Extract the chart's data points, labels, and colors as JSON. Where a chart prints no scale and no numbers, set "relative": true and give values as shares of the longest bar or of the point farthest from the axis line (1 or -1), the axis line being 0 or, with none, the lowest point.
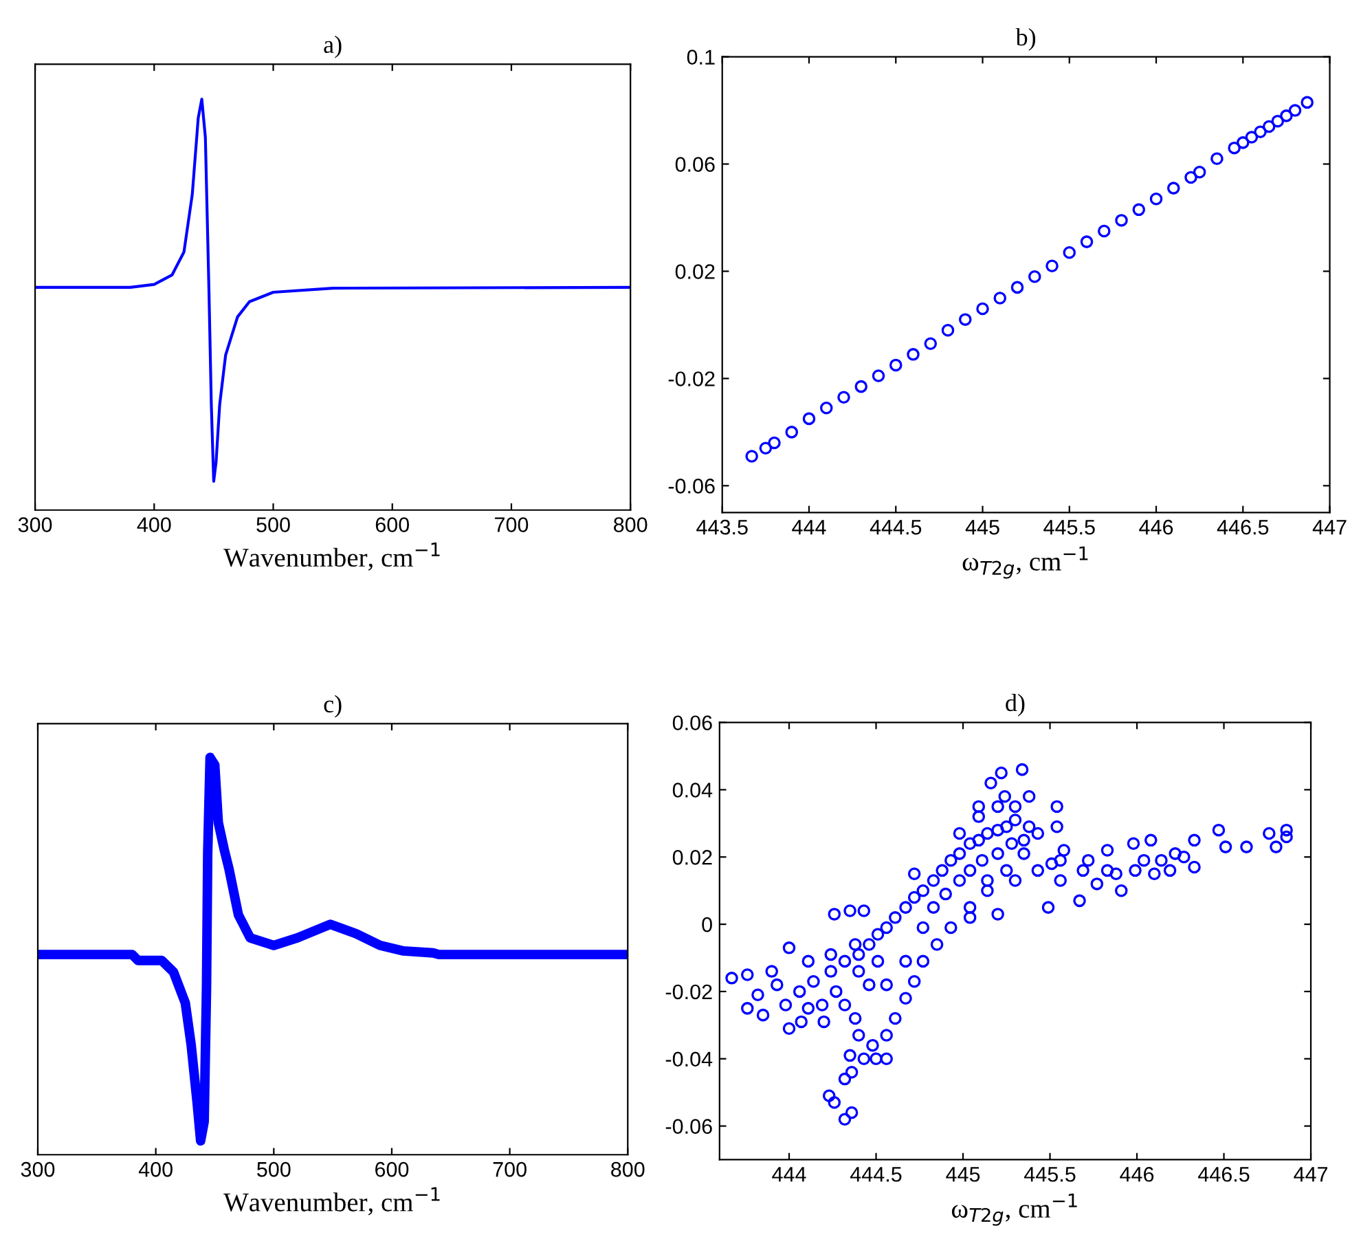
{
  "chart_data": [
    {
      "type": "line",
      "title": "a)",
      "xlabel": "Wavenumber, cm$^{−1}$",
      "relative": true,
      "tick_labels": "x",
      "xlim": [
        300,
        800
      ],
      "xticks": [
        300,
        400,
        500,
        600,
        700,
        800
      ],
      "series": [
        {
          "color": "#0000ff",
          "x": [
            300,
            380,
            400,
            415,
            425,
            432,
            437,
            440,
            443,
            446,
            448,
            450,
            452,
            455,
            460,
            470,
            480,
            500,
            550,
            800
          ],
          "values": [
            0.542,
            0.542,
            0.549,
            0.572,
            0.628,
            0.768,
            0.954,
            1.0,
            0.907,
            0.535,
            0.256,
            0.07,
            0.117,
            0.256,
            0.377,
            0.47,
            0.507,
            0.53,
            0.54,
            0.542
          ]
        }
      ]
    },
    {
      "type": "scatter",
      "title": "b)",
      "xlabel": "ω$_{T2g}$, cm$^{−1}$",
      "marker": "circle",
      "xlim": [
        443.5,
        447
      ],
      "xticks": [
        443.5,
        444,
        444.5,
        445,
        445.5,
        446,
        446.5,
        447
      ],
      "ylim": [
        -0.07,
        0.1
      ],
      "yticks": [
        -0.06,
        -0.02,
        0.02,
        0.06,
        0.1
      ],
      "series": [
        {
          "color": "#0000ff",
          "x": [
            443.67,
            443.75,
            443.8,
            443.9,
            444.0,
            444.1,
            444.2,
            444.3,
            444.4,
            444.5,
            444.6,
            444.7,
            444.8,
            444.9,
            445.0,
            445.1,
            445.2,
            445.3,
            445.4,
            445.5,
            445.6,
            445.7,
            445.8,
            445.9,
            446.0,
            446.1,
            446.2,
            446.25,
            446.35,
            446.45,
            446.5,
            446.55,
            446.6,
            446.65,
            446.7,
            446.75,
            446.8,
            446.87
          ],
          "values": [
            -0.049,
            -0.046,
            -0.044,
            -0.04,
            -0.035,
            -0.031,
            -0.027,
            -0.023,
            -0.019,
            -0.015,
            -0.011,
            -0.007,
            -0.002,
            0.002,
            0.006,
            0.01,
            0.014,
            0.018,
            0.022,
            0.027,
            0.031,
            0.035,
            0.039,
            0.043,
            0.047,
            0.051,
            0.055,
            0.057,
            0.062,
            0.066,
            0.068,
            0.07,
            0.072,
            0.074,
            0.076,
            0.078,
            0.08,
            0.083
          ]
        }
      ]
    },
    {
      "type": "line",
      "title": "c)",
      "xlabel": "Wavenumber, cm$^{−1}$",
      "relative": true,
      "tick_labels": "x",
      "xlim": [
        300,
        800
      ],
      "xticks": [
        300,
        400,
        500,
        600,
        700,
        800
      ],
      "series": [
        {
          "color": "#0000ff",
          "x": [
            300,
            380,
            385,
            405,
            415,
            425,
            430,
            435,
            438,
            441,
            443,
            444,
            446,
            450,
            453,
            458,
            462,
            470,
            480,
            500,
            520,
            548,
            570,
            590,
            610,
            635,
            640,
            800
          ],
          "values": [
            0.504,
            0.504,
            0.489,
            0.489,
            0.46,
            0.382,
            0.276,
            0.132,
            0.035,
            0.083,
            0.421,
            0.759,
            1.0,
            0.981,
            0.836,
            0.768,
            0.72,
            0.604,
            0.546,
            0.527,
            0.546,
            0.58,
            0.556,
            0.527,
            0.513,
            0.508,
            0.504,
            0.504
          ]
        }
      ]
    },
    {
      "type": "scatter",
      "title": "d)",
      "xlabel": "ω$_{T2g}$, cm$^{−1}$",
      "marker": "circle",
      "xlim": [
        443.6,
        447
      ],
      "xticks": [
        444,
        444.5,
        445,
        445.5,
        446,
        446.5,
        447
      ],
      "ylim": [
        -0.07,
        0.06
      ],
      "yticks": [
        -0.06,
        -0.04,
        -0.02,
        0,
        0.02,
        0.04,
        0.06
      ],
      "series": [
        {
          "color": "#0000ff",
          "x": [
            443.67,
            443.76,
            443.76,
            443.82,
            443.85,
            444.0,
            444.0,
            444.07,
            444.2,
            444.26,
            444.35,
            444.43,
            444.23,
            444.26,
            444.32,
            444.36,
            444.32,
            444.36,
            444.35,
            444.43,
            444.5,
            444.56,
            444.72,
            444.98,
            445.09,
            445.16,
            445.22,
            445.34,
            445.24,
            445.38,
            445.54,
            445.54,
            445.58,
            445.51,
            445.83,
            445.98,
            446.08,
            446.33,
            446.47,
            446.51,
            446.63,
            446.76,
            446.8,
            446.86,
            446.86,
            446.33,
            446.1,
            445.91,
            445.67,
            445.49,
            445.2,
            445.04,
            444.06,
            444.14,
            444.24,
            444.32,
            444.4,
            444.46,
            444.51,
            444.56,
            444.61,
            444.67,
            444.72,
            444.77,
            444.83,
            444.88,
            444.93,
            444.98,
            445.04,
            445.09,
            445.14,
            445.2,
            445.25,
            445.3,
            445.38,
            445.43,
            445.35,
            445.25,
            445.14,
            445.04,
            444.93,
            444.85,
            444.77,
            444.72,
            444.67,
            444.61,
            444.56,
            444.48,
            444.4,
            444.38,
            444.32,
            444.27,
            444.19,
            444.11,
            443.98,
            443.93,
            443.9,
            444.11,
            444.24,
            444.38,
            444.51,
            444.56,
            444.46,
            444.4,
            444.67,
            444.77,
            444.83,
            444.9,
            444.98,
            445.04,
            445.11,
            445.2,
            445.28,
            445.35,
            445.09,
            445.2,
            445.3,
            445.14,
            445.3,
            445.43,
            445.56,
            445.69,
            445.77,
            445.88,
            445.99,
            446.04,
            446.14,
            446.22,
            446.19,
            446.27,
            445.72,
            445.56,
            445.83
          ],
          "values": [
            -0.016,
            -0.015,
            -0.025,
            -0.021,
            -0.027,
            -0.031,
            -0.007,
            -0.029,
            -0.029,
            0.003,
            0.004,
            0.004,
            -0.051,
            -0.053,
            -0.058,
            -0.056,
            -0.046,
            -0.044,
            -0.039,
            -0.04,
            -0.04,
            -0.04,
            0.015,
            0.027,
            0.035,
            0.042,
            0.045,
            0.046,
            0.038,
            0.038,
            0.035,
            0.029,
            0.022,
            0.018,
            0.022,
            0.024,
            0.025,
            0.025,
            0.028,
            0.023,
            0.023,
            0.027,
            0.023,
            0.028,
            0.026,
            0.017,
            0.015,
            0.01,
            0.007,
            0.005,
            0.003,
            0.002,
            -0.02,
            -0.017,
            -0.014,
            -0.011,
            -0.009,
            -0.006,
            -0.003,
            -0.001,
            0.002,
            0.005,
            0.008,
            0.01,
            0.013,
            0.016,
            0.019,
            0.021,
            0.024,
            0.025,
            0.027,
            0.028,
            0.029,
            0.031,
            0.029,
            0.027,
            0.021,
            0.016,
            0.01,
            0.005,
            -0.001,
            -0.006,
            -0.011,
            -0.017,
            -0.022,
            -0.028,
            -0.033,
            -0.036,
            -0.033,
            -0.028,
            -0.024,
            -0.02,
            -0.024,
            -0.025,
            -0.024,
            -0.018,
            -0.014,
            -0.011,
            -0.009,
            -0.006,
            -0.011,
            -0.018,
            -0.018,
            -0.014,
            -0.011,
            -0.001,
            0.005,
            0.009,
            0.013,
            0.016,
            0.019,
            0.021,
            0.024,
            0.025,
            0.032,
            0.035,
            0.035,
            0.013,
            0.013,
            0.016,
            0.013,
            0.016,
            0.012,
            0.015,
            0.016,
            0.019,
            0.019,
            0.021,
            0.016,
            0.02,
            0.019,
            0.019,
            0.016
          ]
        }
      ]
    }
  ]
}
